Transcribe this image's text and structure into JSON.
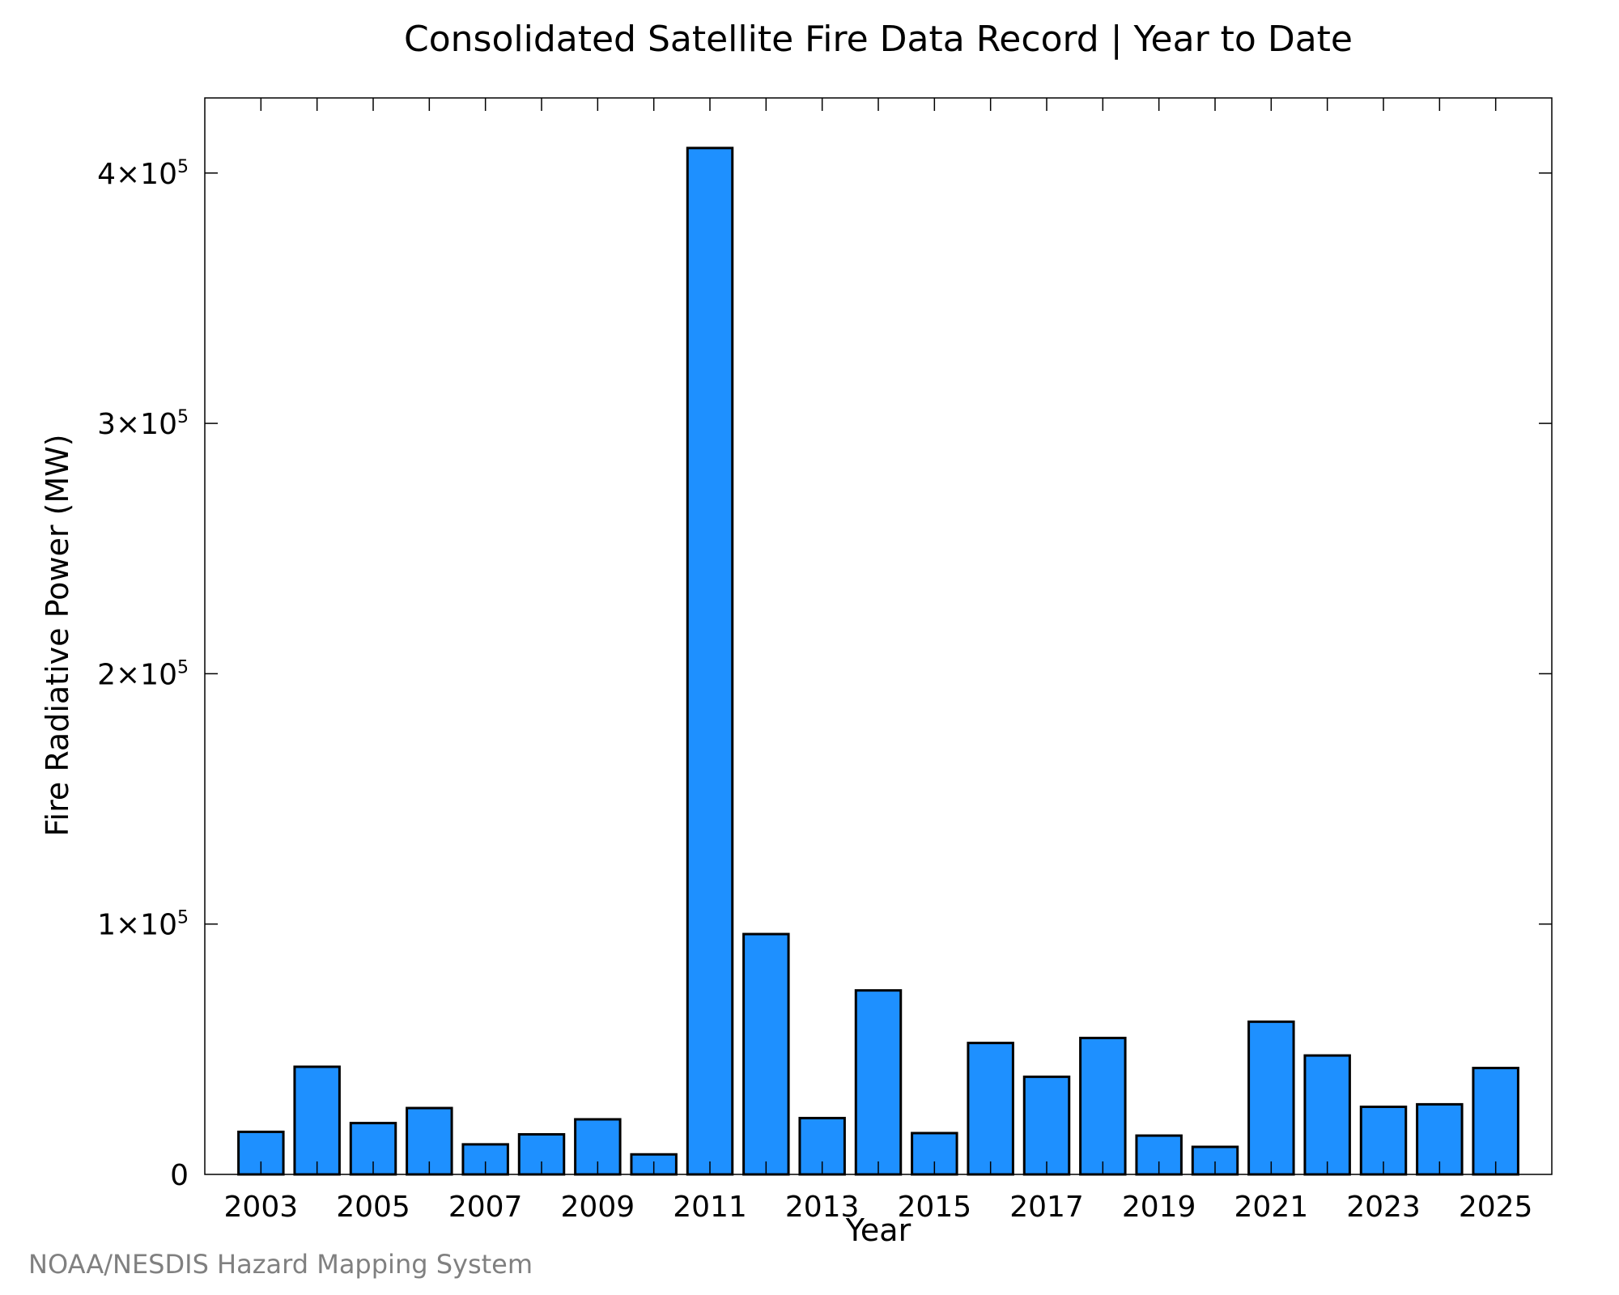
{
  "footer": "NOAA/NESDIS Hazard Mapping System",
  "colors": {
    "bar_fill": "#1e90ff",
    "bar_stroke": "#000000",
    "axis": "#000000",
    "footer": "#808080"
  },
  "chart_data": {
    "type": "bar",
    "title": "Consolidated Satellite Fire Data Record | Year to Date",
    "xlabel": "Year",
    "ylabel": "Fire Radiative Power (MW)",
    "categories": [
      2003,
      2004,
      2005,
      2006,
      2007,
      2008,
      2009,
      2010,
      2011,
      2012,
      2013,
      2014,
      2015,
      2016,
      2017,
      2018,
      2019,
      2020,
      2021,
      2022,
      2023,
      2024,
      2025
    ],
    "values": [
      17000,
      43000,
      20500,
      26500,
      12000,
      16000,
      22000,
      8000,
      410000,
      96000,
      22500,
      73500,
      16500,
      52500,
      39000,
      54500,
      15500,
      11000,
      61000,
      47500,
      27000,
      28000,
      42500
    ],
    "xlim": [
      2002,
      2026
    ],
    "ylim": [
      0,
      430000
    ],
    "x_ticks": [
      "2003",
      "2005",
      "2007",
      "2009",
      "2011",
      "2013",
      "2015",
      "2017",
      "2019",
      "2021",
      "2023",
      "2025"
    ],
    "y_ticks": [
      {
        "value": 0,
        "mantissa": "0",
        "exponent": ""
      },
      {
        "value": 100000,
        "mantissa": "1×10",
        "exponent": "5"
      },
      {
        "value": 200000,
        "mantissa": "2×10",
        "exponent": "5"
      },
      {
        "value": 300000,
        "mantissa": "3×10",
        "exponent": "5"
      },
      {
        "value": 400000,
        "mantissa": "4×10",
        "exponent": "5"
      }
    ],
    "grid": false,
    "legend": "none"
  }
}
